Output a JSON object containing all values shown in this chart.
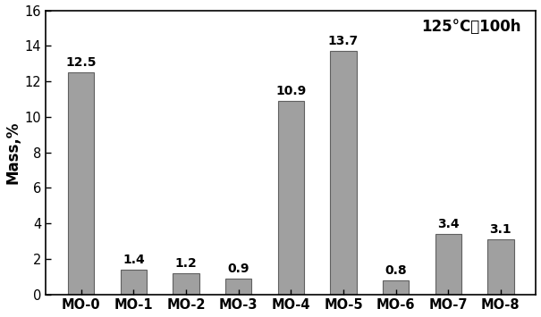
{
  "categories": [
    "MO-0",
    "MO-1",
    "MO-2",
    "MO-3",
    "MO-4",
    "MO-5",
    "MO-6",
    "MO-7",
    "MO-8"
  ],
  "values": [
    12.5,
    1.4,
    1.2,
    0.9,
    10.9,
    13.7,
    0.8,
    3.4,
    3.1
  ],
  "bar_color": "#a0a0a0",
  "bar_edgecolor": "#606060",
  "ylabel": "Mass,%",
  "ylim": [
    0,
    16
  ],
  "yticks": [
    0,
    2,
    4,
    6,
    8,
    10,
    12,
    14,
    16
  ],
  "annotation_text": "125°C，100h",
  "annotation_fontsize": 12,
  "label_fontsize": 10,
  "tick_fontsize": 10.5,
  "ylabel_fontsize": 12,
  "background_color": "#ffffff",
  "figure_facecolor": "#ffffff",
  "bar_width": 0.5
}
